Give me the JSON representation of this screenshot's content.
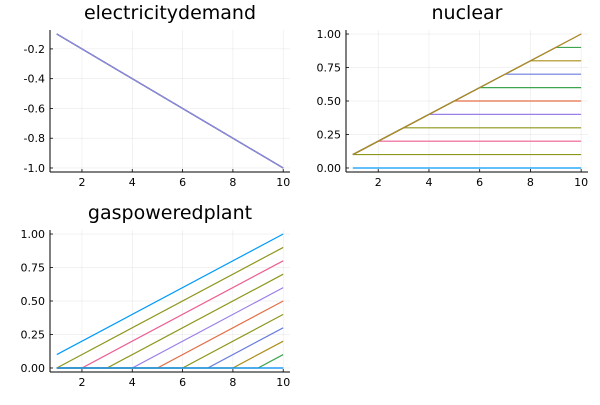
{
  "chart_data": [
    {
      "type": "line",
      "title": "electricitydemand",
      "xlabel": "",
      "ylabel": "",
      "xlim": [
        0.73,
        10.27
      ],
      "ylim": [
        -1.027,
        -0.073
      ],
      "x_ticks": [
        2,
        4,
        6,
        8,
        10
      ],
      "x_tick_labels": [
        "2",
        "4",
        "6",
        "8",
        "10"
      ],
      "y_ticks": [
        -1.0,
        -0.8,
        -0.6,
        -0.4,
        -0.2
      ],
      "y_tick_labels": [
        "-1.0",
        "-0.8",
        "-0.6",
        "-0.4",
        "-0.2"
      ],
      "grid": true,
      "legend": "none",
      "series": [
        {
          "color": "#009AFA",
          "x": [
            1,
            10
          ],
          "y": [
            -0.1,
            -1.0
          ]
        },
        {
          "color": "#E36F47",
          "x": [
            1,
            10
          ],
          "y": [
            -0.1,
            -1.0
          ]
        },
        {
          "color": "#3EA44E",
          "x": [
            1,
            10
          ],
          "y": [
            -0.1,
            -1.0
          ]
        },
        {
          "color": "#C371D2",
          "x": [
            1,
            10
          ],
          "y": [
            -0.1,
            -1.0
          ]
        },
        {
          "color": "#AC8E18",
          "x": [
            1,
            10
          ],
          "y": [
            -0.1,
            -1.0
          ]
        },
        {
          "color": "#00A9AD",
          "x": [
            1,
            10
          ],
          "y": [
            -0.1,
            -1.0
          ]
        },
        {
          "color": "#ED5E93",
          "x": [
            1,
            10
          ],
          "y": [
            -0.1,
            -1.0
          ]
        },
        {
          "color": "#C68225",
          "x": [
            1,
            10
          ],
          "y": [
            -0.1,
            -1.0
          ]
        },
        {
          "color": "#00A98D",
          "x": [
            1,
            10
          ],
          "y": [
            -0.1,
            -1.0
          ]
        },
        {
          "color": "#8E971D",
          "x": [
            1,
            10
          ],
          "y": [
            -0.1,
            -1.0
          ]
        },
        {
          "color": "#00A9CD",
          "x": [
            1,
            10
          ],
          "y": [
            -0.1,
            -1.0
          ]
        },
        {
          "color": "#9B7FE9",
          "x": [
            1,
            10
          ],
          "y": [
            -0.1,
            -1.0
          ]
        }
      ]
    },
    {
      "type": "line",
      "title": "nuclear",
      "xlabel": "",
      "ylabel": "",
      "xlim": [
        0.73,
        10.27
      ],
      "ylim": [
        -0.03,
        1.03
      ],
      "x_ticks": [
        2,
        4,
        6,
        8,
        10
      ],
      "x_tick_labels": [
        "2",
        "4",
        "6",
        "8",
        "10"
      ],
      "y_ticks": [
        0.0,
        0.25,
        0.5,
        0.75,
        1.0
      ],
      "y_tick_labels": [
        "0.00",
        "0.25",
        "0.50",
        "0.75",
        "1.00"
      ],
      "grid": true,
      "legend": "none",
      "series": [
        {
          "color": "#009AFA",
          "x": [
            1,
            10
          ],
          "y": [
            0.0,
            0.0
          ]
        },
        {
          "color": "#8E971D",
          "x": [
            1,
            2,
            10
          ],
          "y": [
            0.1,
            0.1,
            0.1
          ]
        },
        {
          "color": "#ED5E93",
          "x": [
            1,
            2,
            10
          ],
          "y": [
            0.1,
            0.2,
            0.2
          ]
        },
        {
          "color": "#8E971D",
          "x": [
            1,
            3,
            10
          ],
          "y": [
            0.1,
            0.3,
            0.3
          ]
        },
        {
          "color": "#9B7FE9",
          "x": [
            1,
            4,
            10
          ],
          "y": [
            0.1,
            0.4,
            0.4
          ]
        },
        {
          "color": "#E36F47",
          "x": [
            1,
            5,
            10
          ],
          "y": [
            0.1,
            0.5,
            0.5
          ]
        },
        {
          "color": "#3EA44E",
          "x": [
            1,
            6,
            10
          ],
          "y": [
            0.1,
            0.6,
            0.6
          ]
        },
        {
          "color": "#6B7DDD",
          "x": [
            1,
            7,
            10
          ],
          "y": [
            0.1,
            0.7,
            0.7
          ]
        },
        {
          "color": "#AC8E18",
          "x": [
            1,
            8,
            10
          ],
          "y": [
            0.1,
            0.8,
            0.8
          ]
        },
        {
          "color": "#3EA44E",
          "x": [
            1,
            9,
            10
          ],
          "y": [
            0.1,
            0.9,
            0.9
          ]
        },
        {
          "color": "#C371D2",
          "x": [
            1,
            10
          ],
          "y": [
            0.1,
            1.0
          ]
        },
        {
          "color": "#AC8E18",
          "x": [
            1,
            10
          ],
          "y": [
            0.1,
            1.0
          ]
        }
      ]
    },
    {
      "type": "line",
      "title": "gaspoweredplant",
      "xlabel": "",
      "ylabel": "",
      "xlim": [
        0.73,
        10.27
      ],
      "ylim": [
        -0.03,
        1.03
      ],
      "x_ticks": [
        2,
        4,
        6,
        8,
        10
      ],
      "x_tick_labels": [
        "2",
        "4",
        "6",
        "8",
        "10"
      ],
      "y_ticks": [
        0.0,
        0.25,
        0.5,
        0.75,
        1.0
      ],
      "y_tick_labels": [
        "0.00",
        "0.25",
        "0.50",
        "0.75",
        "1.00"
      ],
      "grid": true,
      "legend": "none",
      "series": [
        {
          "color": "#009AFA",
          "x": [
            1,
            10
          ],
          "y": [
            0.1,
            1.0
          ]
        },
        {
          "color": "#8E971D",
          "x": [
            1,
            10
          ],
          "y": [
            0.0,
            0.9
          ]
        },
        {
          "color": "#ED5E93",
          "x": [
            1,
            2,
            10
          ],
          "y": [
            0.0,
            0.0,
            0.8
          ]
        },
        {
          "color": "#8E971D",
          "x": [
            1,
            3,
            10
          ],
          "y": [
            0.0,
            0.0,
            0.7
          ]
        },
        {
          "color": "#9B7FE9",
          "x": [
            1,
            4,
            10
          ],
          "y": [
            0.0,
            0.0,
            0.6
          ]
        },
        {
          "color": "#E36F47",
          "x": [
            1,
            5,
            10
          ],
          "y": [
            0.0,
            0.0,
            0.5
          ]
        },
        {
          "color": "#8E971D",
          "x": [
            1,
            6,
            10
          ],
          "y": [
            0.0,
            0.0,
            0.4
          ]
        },
        {
          "color": "#6B7DDD",
          "x": [
            1,
            7,
            10
          ],
          "y": [
            0.0,
            0.0,
            0.3
          ]
        },
        {
          "color": "#AC8E18",
          "x": [
            1,
            8,
            10
          ],
          "y": [
            0.0,
            0.0,
            0.2
          ]
        },
        {
          "color": "#3EA44E",
          "x": [
            1,
            9,
            10
          ],
          "y": [
            0.0,
            0.0,
            0.1
          ]
        },
        {
          "color": "#C371D2",
          "x": [
            1,
            10
          ],
          "y": [
            0.0,
            0.0
          ]
        },
        {
          "color": "#009AFA",
          "x": [
            1,
            10
          ],
          "y": [
            0.0,
            0.0
          ]
        }
      ]
    }
  ]
}
